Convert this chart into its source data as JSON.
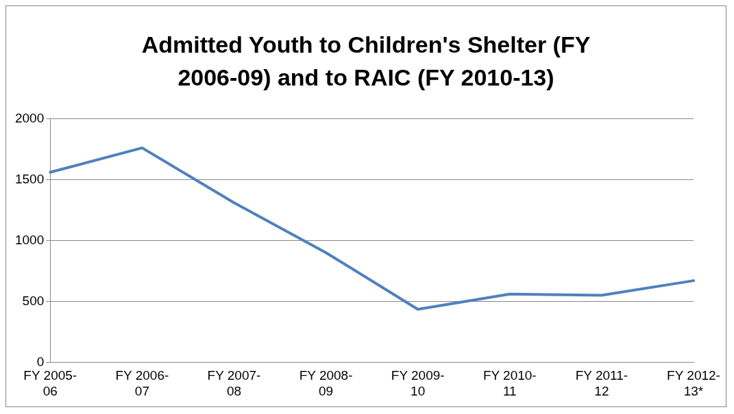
{
  "chart_data": {
    "type": "line",
    "title": "Admitted Youth to Children's Shelter (FY 2006-09) and to RAIC (FY 2010-13)",
    "categories": [
      "FY 2005-06",
      "FY 2006-07",
      "FY 2007-08",
      "FY 2008-09",
      "FY 2009-10",
      "FY 2010-11",
      "FY 2011-12",
      "FY 2012-13*"
    ],
    "series": [
      {
        "color": "#4f81bd",
        "values": [
          1560,
          1760,
          1310,
          900,
          435,
          560,
          550,
          670
        ]
      }
    ],
    "ylim": [
      0,
      2000
    ],
    "yticks": [
      0,
      500,
      1000,
      1500,
      2000
    ],
    "grid": "y",
    "legend": false,
    "marker": "none",
    "line_style": "solid"
  }
}
